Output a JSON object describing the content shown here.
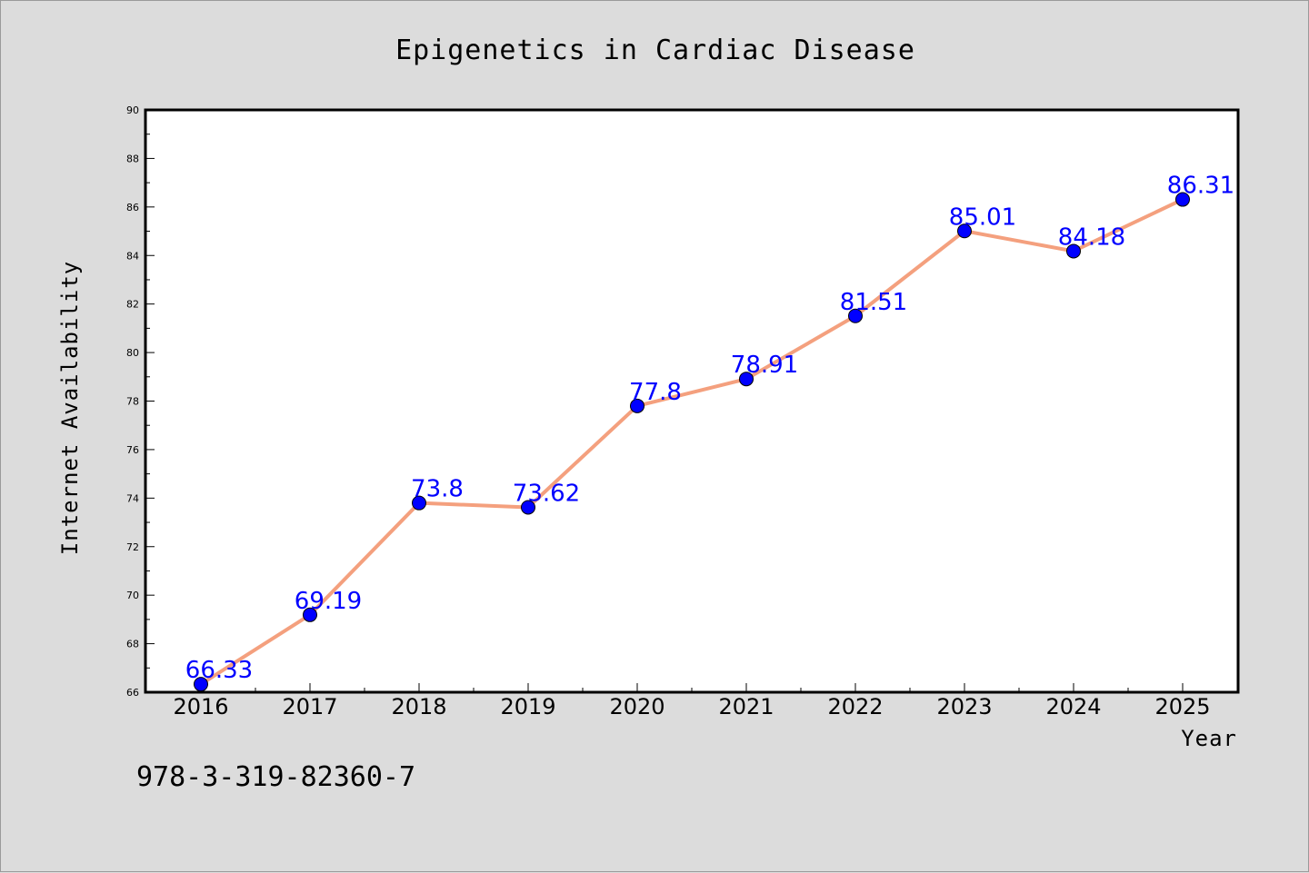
{
  "chart_data": {
    "type": "line",
    "title": "Epigenetics in Cardiac Disease",
    "xlabel": "Year",
    "ylabel": "Internet Availability",
    "categories": [
      "2016",
      "2017",
      "2018",
      "2019",
      "2020",
      "2021",
      "2022",
      "2023",
      "2024",
      "2025"
    ],
    "series": [
      {
        "values": [
          66.33,
          69.19,
          73.8,
          73.62,
          77.8,
          78.91,
          81.51,
          85.01,
          84.18,
          86.31
        ],
        "labels": [
          "66.33",
          "69.19",
          "73.8",
          "73.62",
          "77.8",
          "78.91",
          "81.51",
          "85.01",
          "84.18",
          "86.31"
        ]
      }
    ],
    "ylim": [
      66,
      90
    ],
    "yticks": [
      66,
      68,
      70,
      72,
      74,
      76,
      78,
      80,
      82,
      84,
      86,
      88,
      90
    ],
    "grid": false,
    "legend": "none",
    "colors": {
      "line": "#f4a07e",
      "marker": "#0000ff",
      "label": "#0000ff",
      "background": "#dcdcdc",
      "plot_background": "#ffffff"
    }
  },
  "footnote": "978-3-319-82360-7"
}
